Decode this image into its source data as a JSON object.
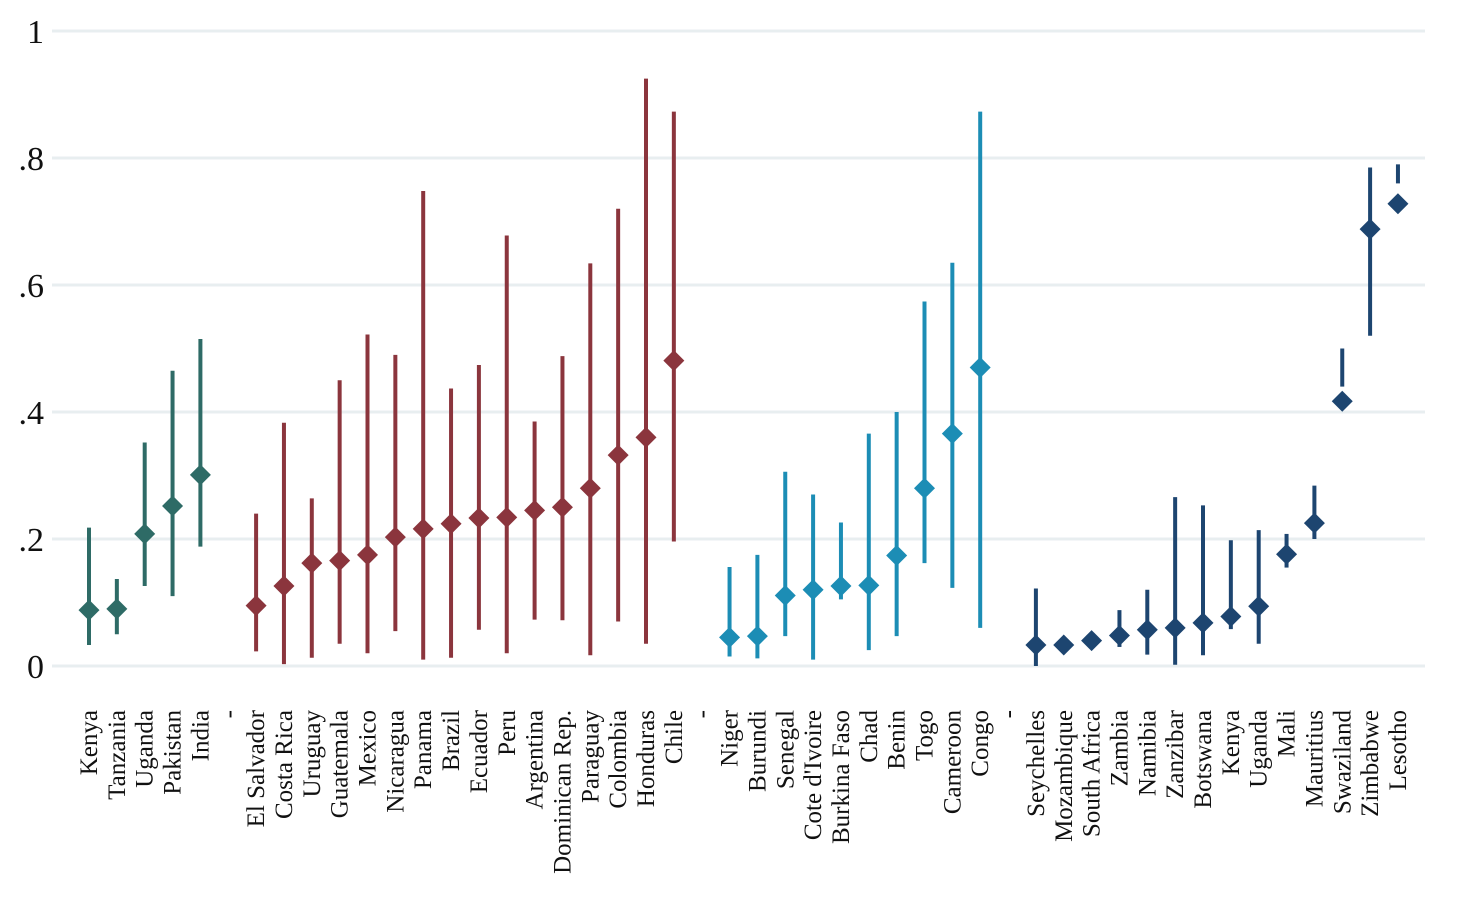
{
  "chart_data": {
    "type": "scatter",
    "subtype": "dot-with-interval",
    "title": "",
    "xlabel": "",
    "ylabel": "",
    "ylim": [
      0,
      1
    ],
    "yticks": [
      {
        "value": 0,
        "label": "0"
      },
      {
        "value": 0.2,
        "label": ".2"
      },
      {
        "value": 0.4,
        "label": ".4"
      },
      {
        "value": 0.6,
        "label": ".6"
      },
      {
        "value": 0.8,
        "label": ".8"
      },
      {
        "value": 1,
        "label": "1"
      }
    ],
    "grid": true,
    "legend": "none",
    "marker": "diamond",
    "categories": [
      "Kenya",
      "Tanzania",
      "Uganda",
      "Pakistan",
      "India",
      "-",
      "El Salvador",
      "Costa Rica",
      "Uruguay",
      "Guatemala",
      "Mexico",
      "Nicaragua",
      "Panama",
      "Brazil",
      "Ecuador",
      "Peru",
      "Argentina",
      "Dominican Rep.",
      "Paraguay",
      "Colombia",
      "Honduras",
      "Chile",
      "-",
      "Niger",
      "Burundi",
      "Senegal",
      "Cote d'Ivoire",
      "Burkina Faso",
      "Chad",
      "Benin",
      "Togo",
      "Cameroon",
      "Congo",
      "-",
      "Seychelles",
      "Mozambique",
      "South Africa",
      "Zambia",
      "Namibia",
      "Zanzibar",
      "Botswana",
      "Kenya",
      "Uganda",
      "Mali",
      "Mauritius",
      "Swaziland",
      "Zimbabwe",
      "Lesotho"
    ],
    "series": [
      {
        "color": "#2e6b66",
        "points": [
          {
            "label": "Kenya",
            "y": 0.088,
            "lo": 0.033,
            "hi": 0.218
          },
          {
            "label": "Tanzania",
            "y": 0.09,
            "lo": 0.05,
            "hi": 0.137
          },
          {
            "label": "Uganda",
            "y": 0.208,
            "lo": 0.126,
            "hi": 0.352
          },
          {
            "label": "Pakistan",
            "y": 0.252,
            "lo": 0.11,
            "hi": 0.465
          },
          {
            "label": "India",
            "y": 0.301,
            "lo": 0.188,
            "hi": 0.515
          }
        ]
      },
      {
        "color": "#8b353d",
        "points": [
          {
            "label": "El Salvador",
            "y": 0.095,
            "lo": 0.023,
            "hi": 0.24
          },
          {
            "label": "Costa Rica",
            "y": 0.126,
            "lo": 0.003,
            "hi": 0.383
          },
          {
            "label": "Uruguay",
            "y": 0.162,
            "lo": 0.013,
            "hi": 0.264
          },
          {
            "label": "Guatemala",
            "y": 0.166,
            "lo": 0.035,
            "hi": 0.45
          },
          {
            "label": "Mexico",
            "y": 0.175,
            "lo": 0.02,
            "hi": 0.522
          },
          {
            "label": "Nicaragua",
            "y": 0.203,
            "lo": 0.055,
            "hi": 0.49
          },
          {
            "label": "Panama",
            "y": 0.216,
            "lo": 0.01,
            "hi": 0.748
          },
          {
            "label": "Brazil",
            "y": 0.224,
            "lo": 0.013,
            "hi": 0.437
          },
          {
            "label": "Ecuador",
            "y": 0.233,
            "lo": 0.057,
            "hi": 0.474
          },
          {
            "label": "Peru",
            "y": 0.234,
            "lo": 0.02,
            "hi": 0.678
          },
          {
            "label": "Argentina",
            "y": 0.245,
            "lo": 0.073,
            "hi": 0.385
          },
          {
            "label": "Dominican Rep.",
            "y": 0.25,
            "lo": 0.072,
            "hi": 0.488
          },
          {
            "label": "Paraguay",
            "y": 0.28,
            "lo": 0.017,
            "hi": 0.634
          },
          {
            "label": "Colombia",
            "y": 0.332,
            "lo": 0.07,
            "hi": 0.72
          },
          {
            "label": "Honduras",
            "y": 0.36,
            "lo": 0.035,
            "hi": 0.925
          },
          {
            "label": "Chile",
            "y": 0.481,
            "lo": 0.196,
            "hi": 0.873
          }
        ]
      },
      {
        "color": "#1c8db5",
        "points": [
          {
            "label": "Niger",
            "y": 0.045,
            "lo": 0.015,
            "hi": 0.156
          },
          {
            "label": "Burundi",
            "y": 0.047,
            "lo": 0.012,
            "hi": 0.175
          },
          {
            "label": "Senegal",
            "y": 0.111,
            "lo": 0.047,
            "hi": 0.306
          },
          {
            "label": "Cote d'Ivoire",
            "y": 0.12,
            "lo": 0.01,
            "hi": 0.27
          },
          {
            "label": "Burkina Faso",
            "y": 0.126,
            "lo": 0.105,
            "hi": 0.226
          },
          {
            "label": "Chad",
            "y": 0.127,
            "lo": 0.025,
            "hi": 0.366
          },
          {
            "label": "Benin",
            "y": 0.174,
            "lo": 0.047,
            "hi": 0.4
          },
          {
            "label": "Togo",
            "y": 0.28,
            "lo": 0.162,
            "hi": 0.574
          },
          {
            "label": "Cameroon",
            "y": 0.366,
            "lo": 0.123,
            "hi": 0.635
          },
          {
            "label": "Congo",
            "y": 0.47,
            "lo": 0.06,
            "hi": 0.873
          }
        ]
      },
      {
        "color": "#1d4570",
        "points": [
          {
            "label": "Seychelles",
            "y": 0.033,
            "lo": 0.0,
            "hi": 0.122
          },
          {
            "label": "Mozambique",
            "y": 0.033,
            "lo": 0.026,
            "hi": 0.04
          },
          {
            "label": "South Africa",
            "y": 0.04,
            "lo": 0.031,
            "hi": 0.047
          },
          {
            "label": "Zambia",
            "y": 0.048,
            "lo": 0.03,
            "hi": 0.088
          },
          {
            "label": "Namibia",
            "y": 0.057,
            "lo": 0.018,
            "hi": 0.12
          },
          {
            "label": "Zanzibar",
            "y": 0.06,
            "lo": 0.002,
            "hi": 0.266
          },
          {
            "label": "Botswana",
            "y": 0.068,
            "lo": 0.017,
            "hi": 0.253
          },
          {
            "label": "Kenya",
            "y": 0.078,
            "lo": 0.058,
            "hi": 0.198
          },
          {
            "label": "Uganda",
            "y": 0.094,
            "lo": 0.035,
            "hi": 0.214
          },
          {
            "label": "Mali",
            "y": 0.176,
            "lo": 0.155,
            "hi": 0.208
          },
          {
            "label": "Mauritius",
            "y": 0.225,
            "lo": 0.2,
            "hi": 0.284
          },
          {
            "label": "Swaziland",
            "y": 0.417,
            "lo": 0.44,
            "hi": 0.5
          },
          {
            "label": "Zimbabwe",
            "y": 0.688,
            "lo": 0.52,
            "hi": 0.785
          },
          {
            "label": "Lesotho",
            "y": 0.728,
            "lo": 0.76,
            "hi": 0.79
          }
        ]
      }
    ]
  }
}
